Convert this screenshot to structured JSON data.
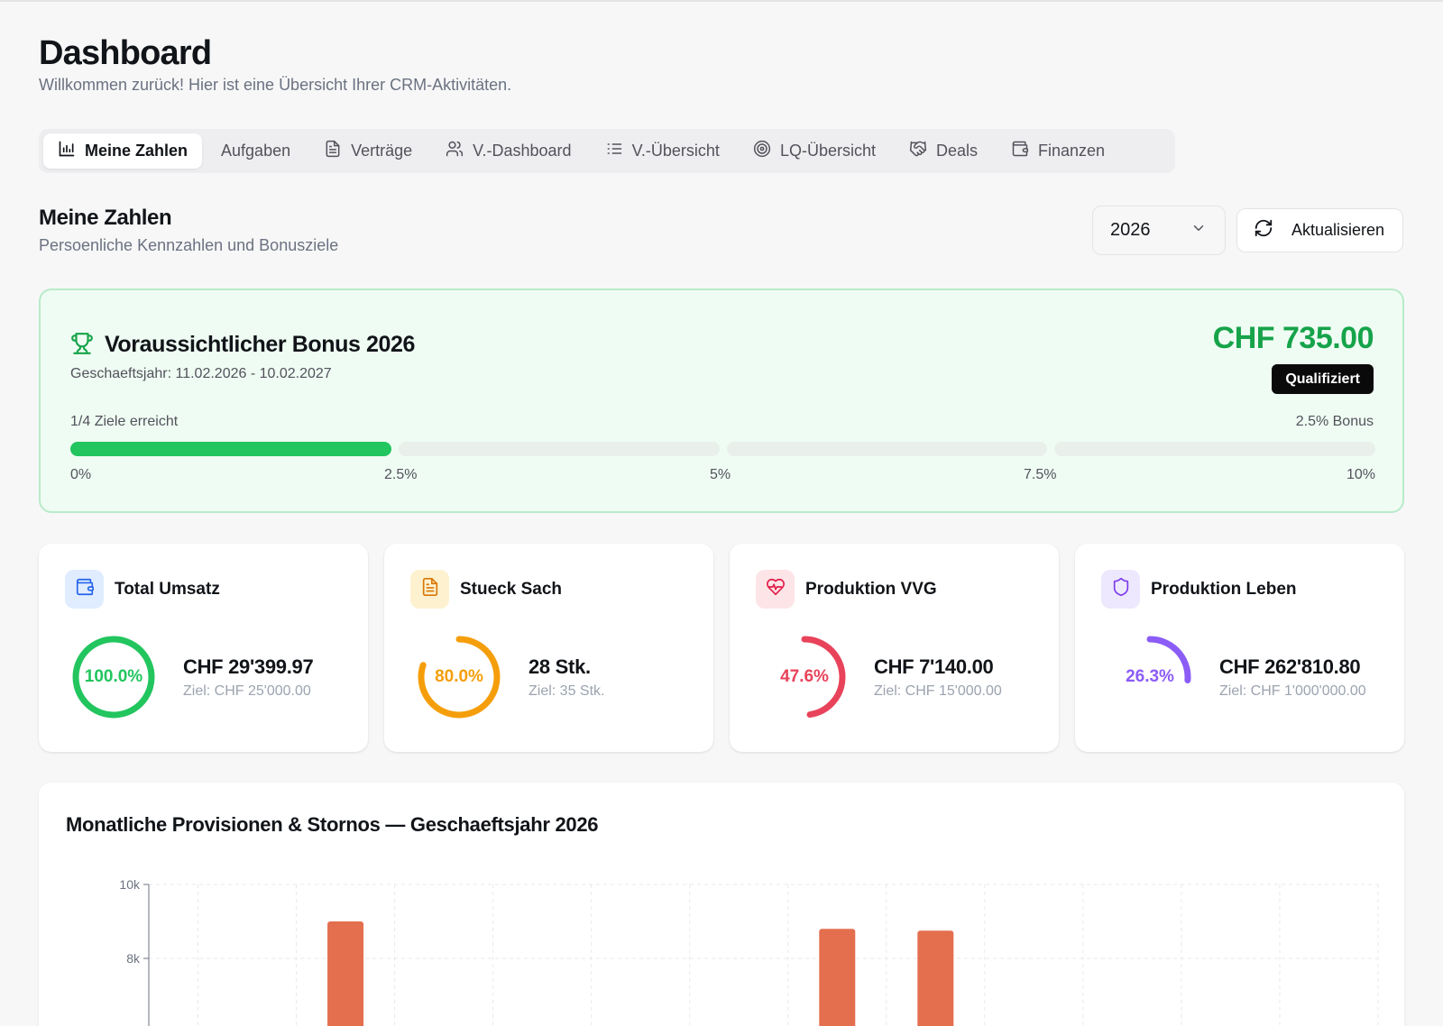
{
  "page": {
    "title": "Dashboard",
    "subtitle": "Willkommen zurück! Hier ist eine Übersicht Ihrer CRM-Aktivitäten."
  },
  "tabs": [
    {
      "label": "Meine Zahlen",
      "icon": "bar-chart-icon",
      "active": true
    },
    {
      "label": "Aufgaben",
      "icon": "",
      "active": false
    },
    {
      "label": "Verträge",
      "icon": "document-icon",
      "active": false
    },
    {
      "label": "V.-Dashboard",
      "icon": "users-icon",
      "active": false
    },
    {
      "label": "V.-Übersicht",
      "icon": "list-icon",
      "active": false
    },
    {
      "label": "LQ-Übersicht",
      "icon": "target-icon",
      "active": false
    },
    {
      "label": "Deals",
      "icon": "handshake-icon",
      "active": false
    },
    {
      "label": "Finanzen",
      "icon": "wallet-icon",
      "active": false
    }
  ],
  "section": {
    "title": "Meine Zahlen",
    "subtitle": "Persoenliche Kennzahlen und Bonusziele"
  },
  "controls": {
    "year": "2026",
    "refresh_label": "Aktualisieren"
  },
  "bonus": {
    "title": "Voraussichtlicher Bonus 2026",
    "period": "Geschaeftsjahr: 11.02.2026 - 10.02.2027",
    "amount": "CHF 735.00",
    "status": "Qualifiziert",
    "goals_text": "1/4 Ziele erreicht",
    "bonus_text": "2.5% Bonus",
    "goals_reached": 1,
    "goals_total": 4,
    "scale": [
      "0%",
      "2.5%",
      "5%",
      "7.5%",
      "10%"
    ],
    "colors": {
      "accent": "#16a34a",
      "bar": "#22c55e",
      "background": "#effcf3"
    }
  },
  "kpis": [
    {
      "title": "Total Umsatz",
      "icon": "wallet-icon",
      "percent_label": "100.0%",
      "progress": 1.0,
      "value": "CHF 29'399.97",
      "target": "Ziel: CHF 25'000.00",
      "color": "#22c55e",
      "icon_bg": "#e0ecff",
      "icon_color": "#2563eb"
    },
    {
      "title": "Stueck Sach",
      "icon": "document-icon",
      "percent_label": "80.0%",
      "progress": 0.8,
      "value": "28 Stk.",
      "target": "Ziel: 35 Stk.",
      "color": "#f59e0b",
      "icon_bg": "#fdf1cf",
      "icon_color": "#d97706"
    },
    {
      "title": "Produktion VVG",
      "icon": "heart-pulse-icon",
      "percent_label": "47.6%",
      "progress": 0.476,
      "value": "CHF 7'140.00",
      "target": "Ziel: CHF 15'000.00",
      "color": "#e8435a",
      "icon_bg": "#fde4e7",
      "icon_color": "#e11d48"
    },
    {
      "title": "Produktion Leben",
      "icon": "shield-icon",
      "percent_label": "26.3%",
      "progress": 0.263,
      "value": "CHF 262'810.80",
      "target": "Ziel: CHF 1'000'000.00",
      "color": "#8b5cf6",
      "icon_bg": "#ede8fd",
      "icon_color": "#7c3aed"
    }
  ],
  "chart": {
    "title": "Monatliche Provisionen & Stornos — Geschaeftsjahr 2026"
  },
  "chart_data": {
    "type": "bar",
    "title": "Monatliche Provisionen & Stornos — Geschaeftsjahr 2026",
    "categories": [
      "",
      "",
      "",
      "",
      "",
      "",
      "",
      "",
      "",
      "",
      "",
      "",
      ""
    ],
    "series": [
      {
        "values": [
          null,
          0,
          9000,
          null,
          null,
          null,
          0,
          8800,
          8750,
          null,
          null,
          null,
          null
        ],
        "color": "#e46f4f"
      }
    ],
    "yticks": [
      "10k",
      "8k"
    ],
    "ylim": [
      0,
      10000
    ],
    "grid": true
  }
}
